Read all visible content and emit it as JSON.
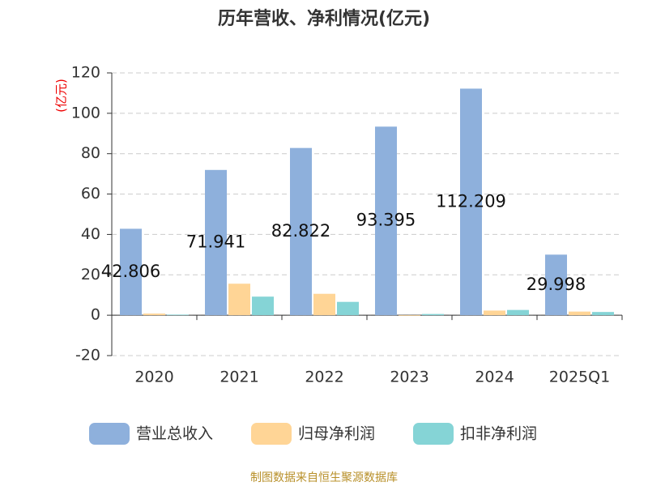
{
  "chart_data": {
    "type": "bar",
    "title": "历年营收、净利情况(亿元)",
    "y_label": "(亿元)",
    "categories": [
      "2020",
      "2021",
      "2022",
      "2023",
      "2024",
      "2025Q1"
    ],
    "series": [
      {
        "name": "营业总收入",
        "color": "#8eb0dc",
        "values": [
          42.806,
          71.941,
          82.822,
          93.395,
          112.209,
          29.998
        ],
        "show_labels": true
      },
      {
        "name": "归母净利润",
        "color": "#ffd596",
        "values": [
          0.8,
          15.6,
          10.6,
          -0.3,
          2.3,
          1.8
        ]
      },
      {
        "name": "扣非净利润",
        "color": "#85d4d6",
        "values": [
          0.3,
          9.2,
          6.6,
          0.6,
          2.6,
          1.6
        ]
      }
    ],
    "ylim": [
      -20,
      120
    ],
    "yticks": [
      -20,
      0,
      20,
      40,
      60,
      80,
      100,
      120
    ],
    "grid": true,
    "source": "制图数据来自恒生聚源数据库"
  }
}
